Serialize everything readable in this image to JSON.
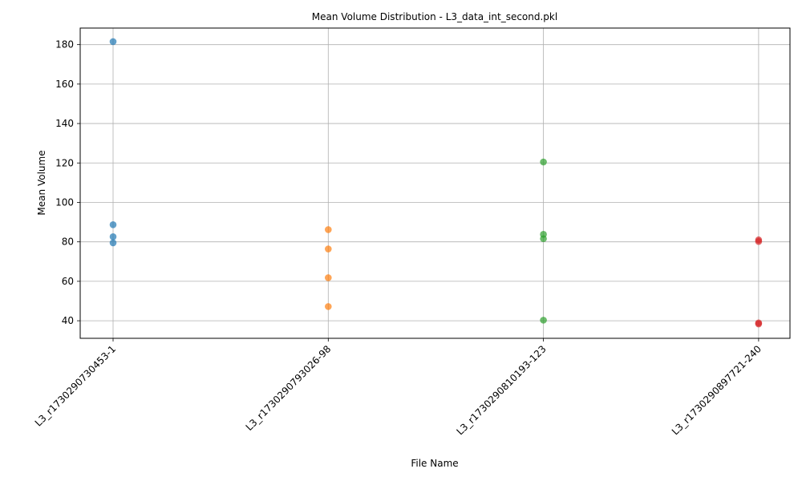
{
  "chart_data": {
    "type": "scatter",
    "title": "Mean Volume Distribution - L3_data_int_second.pkl",
    "xlabel": "File Name",
    "ylabel": "Mean Volume",
    "categories": [
      "L3_r1730290730453-1",
      "L3_r1730290793026-98",
      "L3_r1730290810193-123",
      "L3_r1730290897721-240"
    ],
    "series": [
      {
        "category": "L3_r1730290730453-1",
        "color": "#1f77b4",
        "values": [
          181.5,
          88.7,
          82.6,
          79.5
        ]
      },
      {
        "category": "L3_r1730290793026-98",
        "color": "#ff7f0e",
        "values": [
          86.2,
          76.4,
          61.8,
          47.2
        ]
      },
      {
        "category": "L3_r1730290810193-123",
        "color": "#2ca02c",
        "values": [
          120.5,
          83.8,
          81.6,
          40.3
        ]
      },
      {
        "category": "L3_r1730290897721-240",
        "color": "#d62728",
        "values": [
          81.0,
          80.2,
          38.9,
          38.4
        ]
      }
    ],
    "yticks": [
      40,
      60,
      80,
      100,
      120,
      140,
      160,
      180
    ],
    "ylim": [
      31.1,
      188.4
    ],
    "grid": true,
    "legend": "none"
  }
}
